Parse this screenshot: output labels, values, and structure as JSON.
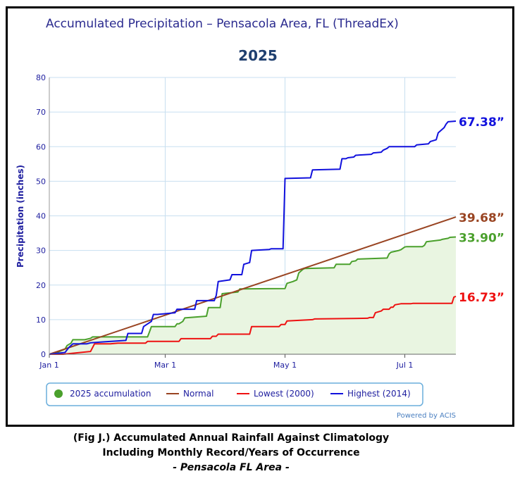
{
  "chart_data": {
    "type": "line",
    "header": "Accumulated Precipitation – Pensacola Area, FL (ThreadEx)",
    "title": "2025",
    "xlabel": "",
    "ylabel": "Precipitation (inches)",
    "ylim": [
      0,
      80
    ],
    "y_ticks": [
      "0",
      "10",
      "20",
      "30",
      "40",
      "50",
      "60",
      "70",
      "80"
    ],
    "x_range": [
      "2025-01-01",
      "2025-07-27"
    ],
    "x_ticks": [
      {
        "label": "Jan 1",
        "date": "2025-01-01"
      },
      {
        "label": "Mar 1",
        "date": "2025-03-01"
      },
      {
        "label": "May 1",
        "date": "2025-05-01"
      },
      {
        "label": "Jul 1",
        "date": "2025-07-01"
      }
    ],
    "grid": true,
    "legend_position": "bottom",
    "credit": "Powered by ACIS",
    "series": [
      {
        "name": "2025 accumulation",
        "color": "#4aa02c",
        "fill": "#e9f5e1",
        "end_label": "33.90”",
        "x": [
          "2025-01-01",
          "2025-01-05",
          "2025-01-09",
          "2025-01-10",
          "2025-01-12",
          "2025-01-13",
          "2025-01-19",
          "2025-01-22",
          "2025-01-23",
          "2025-02-20",
          "2025-02-21",
          "2025-02-22",
          "2025-03-06",
          "2025-03-07",
          "2025-03-08",
          "2025-03-10",
          "2025-03-11",
          "2025-03-22",
          "2025-03-23",
          "2025-03-29",
          "2025-03-30",
          "2025-04-07",
          "2025-04-08",
          "2025-05-01",
          "2025-05-02",
          "2025-05-05",
          "2025-05-07",
          "2025-05-08",
          "2025-05-10",
          "2025-05-11",
          "2025-05-26",
          "2025-05-27",
          "2025-06-03",
          "2025-06-04",
          "2025-06-06",
          "2025-06-07",
          "2025-06-22",
          "2025-06-23",
          "2025-06-24",
          "2025-06-28",
          "2025-06-29",
          "2025-07-01",
          "2025-07-02",
          "2025-07-10",
          "2025-07-11",
          "2025-07-12",
          "2025-07-19",
          "2025-07-20",
          "2025-07-23",
          "2025-07-24",
          "2025-07-27"
        ],
        "y": [
          0.0,
          0.5,
          1.5,
          2.5,
          3.2,
          4.2,
          4.2,
          4.6,
          5.0,
          5.0,
          6.5,
          8.0,
          8.0,
          8.8,
          8.8,
          9.5,
          10.5,
          11.0,
          13.5,
          13.5,
          17.5,
          18.0,
          18.9,
          19.0,
          20.5,
          21.0,
          21.5,
          23.5,
          24.5,
          24.8,
          25.0,
          26.0,
          26.0,
          26.8,
          27.0,
          27.5,
          27.8,
          29.0,
          29.5,
          30.0,
          30.2,
          31.0,
          31.1,
          31.1,
          31.5,
          32.5,
          33.0,
          33.2,
          33.5,
          33.8,
          33.9
        ]
      },
      {
        "name": "Normal",
        "color": "#994422",
        "end_label": "39.68”",
        "x": [
          "2025-01-01",
          "2025-07-27"
        ],
        "y": [
          0.0,
          39.68
        ]
      },
      {
        "name": "Lowest (2000)",
        "color": "#ee1111",
        "end_label": "16.73”",
        "x": [
          "2025-01-01",
          "2025-01-08",
          "2025-01-22",
          "2025-01-24",
          "2025-02-01",
          "2025-02-05",
          "2025-02-19",
          "2025-02-20",
          "2025-03-08",
          "2025-03-09",
          "2025-03-24",
          "2025-03-25",
          "2025-03-27",
          "2025-03-28",
          "2025-04-13",
          "2025-04-14",
          "2025-04-28",
          "2025-04-29",
          "2025-05-01",
          "2025-05-02",
          "2025-05-15",
          "2025-05-16",
          "2025-06-12",
          "2025-06-13",
          "2025-06-15",
          "2025-06-16",
          "2025-06-19",
          "2025-06-20",
          "2025-06-23",
          "2025-06-24",
          "2025-06-25",
          "2025-06-26",
          "2025-06-28",
          "2025-06-29",
          "2025-07-04",
          "2025-07-05",
          "2025-07-25",
          "2025-07-26",
          "2025-07-27"
        ],
        "y": [
          0.0,
          0.0,
          0.8,
          3.0,
          3.0,
          3.2,
          3.2,
          3.7,
          3.7,
          4.5,
          4.5,
          5.2,
          5.2,
          5.8,
          5.8,
          8.0,
          8.0,
          8.6,
          8.6,
          9.6,
          10.0,
          10.2,
          10.4,
          10.6,
          10.6,
          12.0,
          12.5,
          13.0,
          13.0,
          13.6,
          13.6,
          14.3,
          14.5,
          14.6,
          14.6,
          14.7,
          14.7,
          16.5,
          16.73
        ]
      },
      {
        "name": "Highest (2014)",
        "color": "#1111dd",
        "end_label": "67.38”",
        "x": [
          "2025-01-01",
          "2025-01-09",
          "2025-01-11",
          "2025-01-13",
          "2025-01-20",
          "2025-01-22",
          "2025-01-27",
          "2025-02-09",
          "2025-02-10",
          "2025-02-17",
          "2025-02-18",
          "2025-02-22",
          "2025-02-23",
          "2025-02-25",
          "2025-03-06",
          "2025-03-07",
          "2025-03-16",
          "2025-03-17",
          "2025-03-26",
          "2025-03-27",
          "2025-03-28",
          "2025-04-03",
          "2025-04-04",
          "2025-04-09",
          "2025-04-10",
          "2025-04-13",
          "2025-04-14",
          "2025-04-23",
          "2025-04-24",
          "2025-04-30",
          "2025-05-01",
          "2025-05-14",
          "2025-05-15",
          "2025-05-29",
          "2025-05-30",
          "2025-06-01",
          "2025-06-02",
          "2025-06-05",
          "2025-06-06",
          "2025-06-14",
          "2025-06-15",
          "2025-06-19",
          "2025-06-20",
          "2025-06-22",
          "2025-06-23",
          "2025-07-06",
          "2025-07-07",
          "2025-07-13",
          "2025-07-14",
          "2025-07-17",
          "2025-07-18",
          "2025-07-21",
          "2025-07-22",
          "2025-07-23",
          "2025-07-27"
        ],
        "y": [
          0.0,
          0.5,
          2.0,
          3.0,
          3.0,
          3.3,
          3.5,
          4.0,
          6.0,
          6.0,
          8.0,
          9.5,
          11.5,
          11.5,
          12.0,
          13.0,
          13.0,
          15.5,
          15.5,
          17.0,
          21.0,
          21.5,
          23.0,
          23.0,
          26.0,
          26.5,
          30.0,
          30.3,
          30.5,
          30.5,
          50.8,
          51.0,
          53.3,
          53.5,
          56.5,
          56.5,
          56.8,
          57.0,
          57.5,
          57.8,
          58.2,
          58.4,
          59.0,
          59.5,
          60.0,
          60.0,
          60.5,
          60.8,
          61.5,
          62.0,
          64.0,
          65.5,
          66.5,
          67.2,
          67.38
        ]
      }
    ]
  },
  "caption": {
    "line1": "(Fig J.) Accumulated Annual Rainfall Against  Climatology",
    "line2": "Including Monthly Record/Years of Occurrence",
    "line3": "- Pensacola FL Area -"
  }
}
